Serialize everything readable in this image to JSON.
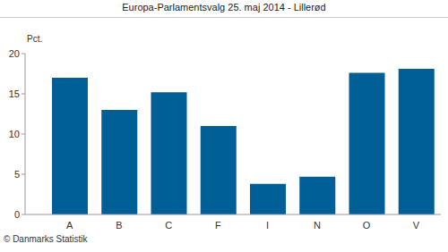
{
  "chart_data": {
    "type": "bar",
    "title": "Europa-Parlamentsvalg 25. maj 2014 - Lillerød",
    "y_label": "Pct.",
    "source": "© Danmarks Statistik",
    "categories": [
      "A",
      "B",
      "C",
      "F",
      "I",
      "N",
      "O",
      "V"
    ],
    "values": [
      17.0,
      13.0,
      15.2,
      11.0,
      3.8,
      4.7,
      17.6,
      18.1
    ],
    "color": "#005f96",
    "ylim": [
      0,
      20
    ],
    "yticks": [
      0,
      5,
      10,
      15,
      20
    ],
    "grid": false
  }
}
